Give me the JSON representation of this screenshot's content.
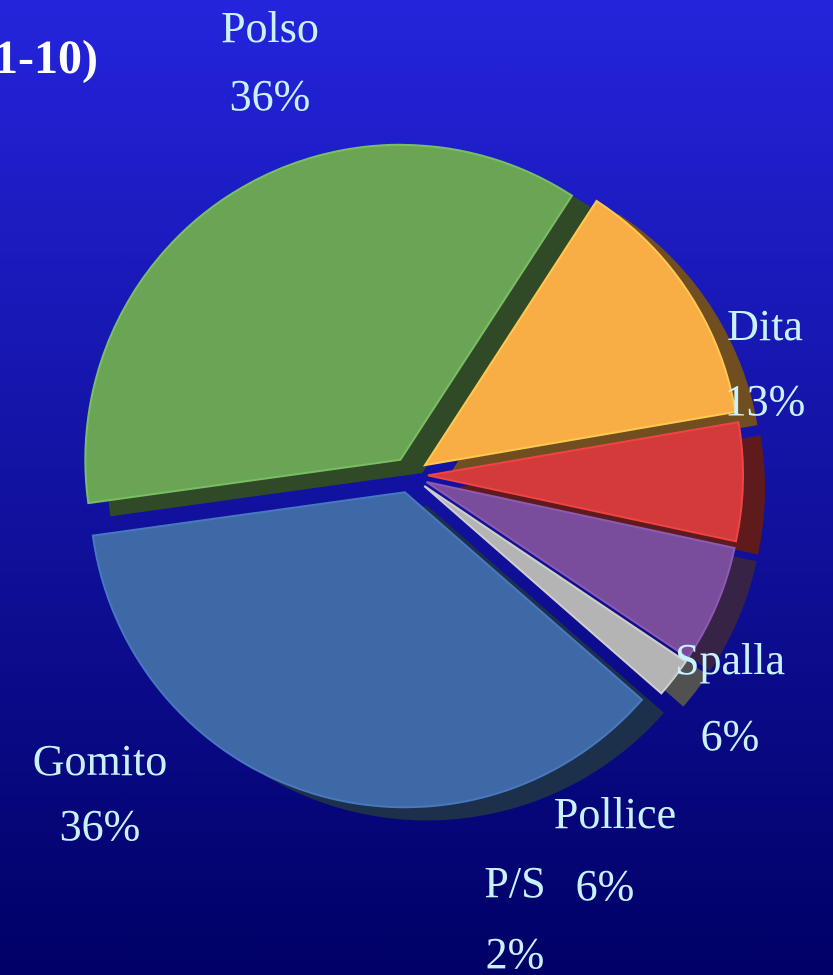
{
  "chart_data": {
    "type": "pie",
    "title": "1-10)",
    "categories": [
      "Dita",
      "Spalla",
      "Pollice",
      "P/S",
      "Gomito",
      "Polso"
    ],
    "values": [
      13,
      6,
      6,
      2,
      36,
      36
    ],
    "value_labels": [
      "13%",
      "6%",
      "6%",
      "2%",
      "36%",
      "36%"
    ],
    "colors": [
      "#f8ae45",
      "#d23a3c",
      "#7a4d9c",
      "#b4b4b4",
      "#3f68a6",
      "#6aa556"
    ]
  }
}
